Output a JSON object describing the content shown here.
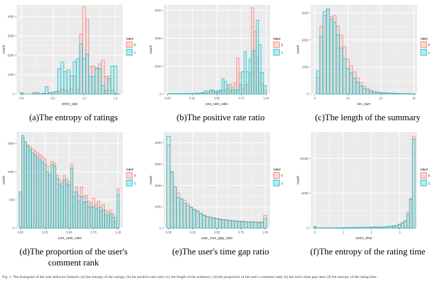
{
  "figure": {
    "bottom_caption": "Fig. 1. The histogram of the user behavior features: (a) the entropy of the ratings; (b) the positive rate ratio; (c) the length of the summary; (d) the proportion of the user's comment rank; (e) the user's time gap ratio; (f) the entropy of the rating time.",
    "panel_bg": "#EBEBEB",
    "grid_color": "#FFFFFF",
    "text_color": "#4d4d4d"
  },
  "chart_data": [
    {
      "id": "a",
      "type": "bar",
      "caption": "(a)The entropy of ratings",
      "xlabel": "entro_rate",
      "ylabel": "count",
      "xlim": [
        -0.08,
        1.62
      ],
      "ylim": [
        0,
        4600
      ],
      "xticks": [
        0.0,
        0.5,
        1.0,
        1.5
      ],
      "xtick_labels": [
        "0.0",
        "0.5",
        "1.0",
        "1.5"
      ],
      "yticks": [
        0,
        1000,
        2000,
        3000,
        4000
      ],
      "ytick_labels": [
        "0",
        "1000",
        "2000",
        "3000",
        "4000"
      ],
      "bin_start": -0.025,
      "bin_width": 0.05,
      "legend_title": "label",
      "series": [
        {
          "name": "0",
          "color": "#F8766D",
          "values": [
            60,
            0,
            0,
            0,
            90,
            95,
            0,
            45,
            20,
            80,
            95,
            120,
            150,
            250,
            200,
            160,
            250,
            900,
            250,
            3100,
            4500,
            3850,
            1400,
            1450,
            1300,
            1550,
            1750,
            900,
            950,
            200,
            50,
            0
          ]
        },
        {
          "name": "1",
          "color": "#00BFC4",
          "values": [
            70,
            0,
            0,
            0,
            20,
            20,
            20,
            30,
            380,
            60,
            90,
            130,
            1300,
            1650,
            1150,
            1250,
            950,
            1670,
            1820,
            2600,
            1820,
            2050,
            900,
            900,
            1350,
            1300,
            450,
            200,
            800,
            1450,
            1450,
            0
          ]
        }
      ]
    },
    {
      "id": "b",
      "type": "bar",
      "caption": "(b)The positive rate ratio",
      "xlabel": "pos_rate_ratio",
      "ylabel": "count",
      "xlim": [
        -0.04,
        1.04
      ],
      "ylim": [
        0,
        6400
      ],
      "xticks": [
        0,
        0.25,
        0.5,
        0.75,
        1.0
      ],
      "xtick_labels": [
        "0.00",
        "0.25",
        "0.50",
        "0.75",
        "1.00"
      ],
      "yticks": [
        0,
        2000,
        4000,
        6000
      ],
      "ytick_labels": [
        "0",
        "2000",
        "4000",
        "6000"
      ],
      "bin_start": 0.0,
      "bin_width": 0.025,
      "legend_title": "label",
      "series": [
        {
          "name": "0",
          "color": "#F8766D",
          "values": [
            30,
            30,
            30,
            30,
            30,
            30,
            30,
            30,
            40,
            40,
            40,
            50,
            50,
            60,
            60,
            80,
            150,
            300,
            200,
            150,
            150,
            200,
            250,
            300,
            400,
            700,
            500,
            800,
            2600,
            1550,
            400,
            650,
            700,
            1500,
            6200,
            4500,
            2600,
            1500,
            700,
            250
          ]
        },
        {
          "name": "1",
          "color": "#00BFC4",
          "values": [
            20,
            20,
            20,
            20,
            20,
            20,
            20,
            20,
            30,
            30,
            40,
            50,
            60,
            80,
            120,
            250,
            150,
            250,
            300,
            200,
            250,
            300,
            1100,
            900,
            650,
            250,
            300,
            250,
            300,
            650,
            1600,
            3050,
            1600,
            2500,
            3100,
            3100,
            5300,
            3550,
            1550,
            600
          ]
        }
      ]
    },
    {
      "id": "c",
      "type": "bar",
      "caption": "(c)The length of the summary",
      "xlabel": "len_sum",
      "ylabel": "count",
      "xlim": [
        -1.2,
        31
      ],
      "ylim": [
        0,
        3300
      ],
      "xticks": [
        0,
        10,
        20,
        30
      ],
      "xtick_labels": [
        "0",
        "10",
        "20",
        "30"
      ],
      "yticks": [
        0,
        1000,
        2000,
        3000
      ],
      "ytick_labels": [
        "0",
        "1000",
        "2000",
        "3000"
      ],
      "bin_start": 0.5,
      "bin_width": 1,
      "legend_title": "label",
      "series": [
        {
          "name": "0",
          "color": "#F8766D",
          "values": [
            600,
            2500,
            2900,
            3100,
            2870,
            2900,
            2520,
            2180,
            1750,
            1300,
            1050,
            820,
            600,
            420,
            300,
            200,
            150,
            100,
            80,
            60,
            50,
            40,
            35,
            30,
            25,
            20,
            18,
            15,
            12,
            10
          ]
        },
        {
          "name": "1",
          "color": "#00BFC4",
          "values": [
            850,
            2130,
            3050,
            3150,
            2780,
            2650,
            2200,
            1700,
            1300,
            950,
            780,
            580,
            430,
            300,
            200,
            130,
            90,
            60,
            50,
            40,
            35,
            30,
            25,
            20,
            18,
            15,
            12,
            10,
            8,
            6
          ]
        }
      ]
    },
    {
      "id": "d",
      "type": "bar",
      "caption": "(d)The proportion of the user's comment rank",
      "xlabel": "com_rank_ratio",
      "ylabel": "count",
      "xlim": [
        -0.04,
        1.05
      ],
      "ylim": [
        0,
        1700
      ],
      "xticks": [
        0,
        0.25,
        0.5,
        0.75,
        1.0
      ],
      "xtick_labels": [
        "0.00",
        "0.25",
        "0.50",
        "0.75",
        "1.00"
      ],
      "yticks": [
        0,
        500,
        1000,
        1500
      ],
      "ytick_labels": [
        "0",
        "500",
        "1000",
        "1500"
      ],
      "bin_start": -0.0125,
      "bin_width": 0.025,
      "legend_title": "label",
      "series": [
        {
          "name": "0",
          "color": "#F8766D",
          "values": [
            640,
            1600,
            1530,
            1470,
            1440,
            1400,
            1360,
            1330,
            1300,
            1270,
            1230,
            1100,
            960,
            1180,
            1150,
            940,
            860,
            800,
            930,
            870,
            820,
            1130,
            640,
            730,
            580,
            730,
            560,
            580,
            480,
            440,
            530,
            420,
            480,
            380,
            420,
            310,
            290,
            320,
            250,
            190,
            700
          ]
        },
        {
          "name": "1",
          "color": "#00BFC4",
          "values": [
            640,
            1640,
            1530,
            1450,
            1390,
            1330,
            1290,
            1250,
            1210,
            1170,
            1130,
            1000,
            930,
            1120,
            1100,
            880,
            780,
            740,
            850,
            780,
            760,
            1060,
            560,
            640,
            480,
            560,
            460,
            470,
            380,
            370,
            380,
            350,
            370,
            300,
            330,
            240,
            220,
            250,
            190,
            120,
            590
          ]
        }
      ]
    },
    {
      "id": "e",
      "type": "bar",
      "caption": "(e)The user's time gap ratio",
      "xlabel": "user_com_gap_ratio",
      "ylabel": "count",
      "xlim": [
        -0.05,
        1.05
      ],
      "ylim": [
        0,
        4500
      ],
      "xticks": [
        0,
        0.25,
        0.5,
        0.75,
        1.0
      ],
      "xtick_labels": [
        "0.00",
        "0.25",
        "0.50",
        "0.75",
        "1.00"
      ],
      "yticks": [
        0,
        1000,
        2000,
        3000,
        4000
      ],
      "ytick_labels": [
        "0",
        "1000",
        "2000",
        "3000",
        "4000"
      ],
      "bin_start": -0.01667,
      "bin_width": 0.03333,
      "legend_title": "label",
      "series": [
        {
          "name": "0",
          "color": "#F8766D",
          "values": [
            3900,
            2600,
            1950,
            1650,
            1380,
            1300,
            1150,
            1000,
            900,
            820,
            700,
            620,
            560,
            520,
            490,
            460,
            430,
            410,
            390,
            370,
            350,
            340,
            330,
            320,
            310,
            300,
            300,
            290,
            290,
            300,
            600
          ]
        },
        {
          "name": "1",
          "color": "#00BFC4",
          "values": [
            4300,
            2650,
            1950,
            1450,
            1380,
            1150,
            1050,
            950,
            850,
            780,
            680,
            600,
            540,
            500,
            470,
            440,
            410,
            390,
            370,
            350,
            330,
            320,
            310,
            300,
            290,
            280,
            280,
            270,
            260,
            260,
            450
          ]
        }
      ]
    },
    {
      "id": "f",
      "type": "bar",
      "caption": "(f)The entropy of the rating time",
      "xlabel": "entro_time",
      "ylabel": "count",
      "xlim": [
        -0.15,
        3.62
      ],
      "ylim": [
        0,
        13800
      ],
      "xticks": [
        0,
        1,
        2,
        3
      ],
      "xtick_labels": [
        "0",
        "1",
        "2",
        "3"
      ],
      "yticks": [
        0,
        5000,
        10000
      ],
      "ytick_labels": [
        "0",
        "5000",
        "10000"
      ],
      "bin_start": -0.05,
      "bin_width": 0.1,
      "legend_title": "label",
      "series": [
        {
          "name": "0",
          "color": "#F8766D",
          "values": [
            250,
            30,
            40,
            40,
            50,
            50,
            60,
            60,
            70,
            70,
            80,
            90,
            90,
            100,
            100,
            110,
            110,
            120,
            130,
            140,
            160,
            200,
            180,
            160,
            180,
            200,
            250,
            300,
            350,
            400,
            600,
            800,
            1100,
            2300,
            4250,
            13200
          ]
        },
        {
          "name": "1",
          "color": "#00BFC4",
          "values": [
            150,
            20,
            30,
            30,
            40,
            40,
            50,
            50,
            60,
            60,
            70,
            80,
            80,
            90,
            90,
            100,
            100,
            110,
            120,
            130,
            150,
            180,
            160,
            140,
            160,
            180,
            220,
            270,
            320,
            370,
            550,
            750,
            1000,
            2000,
            4150,
            12800
          ]
        }
      ]
    }
  ]
}
